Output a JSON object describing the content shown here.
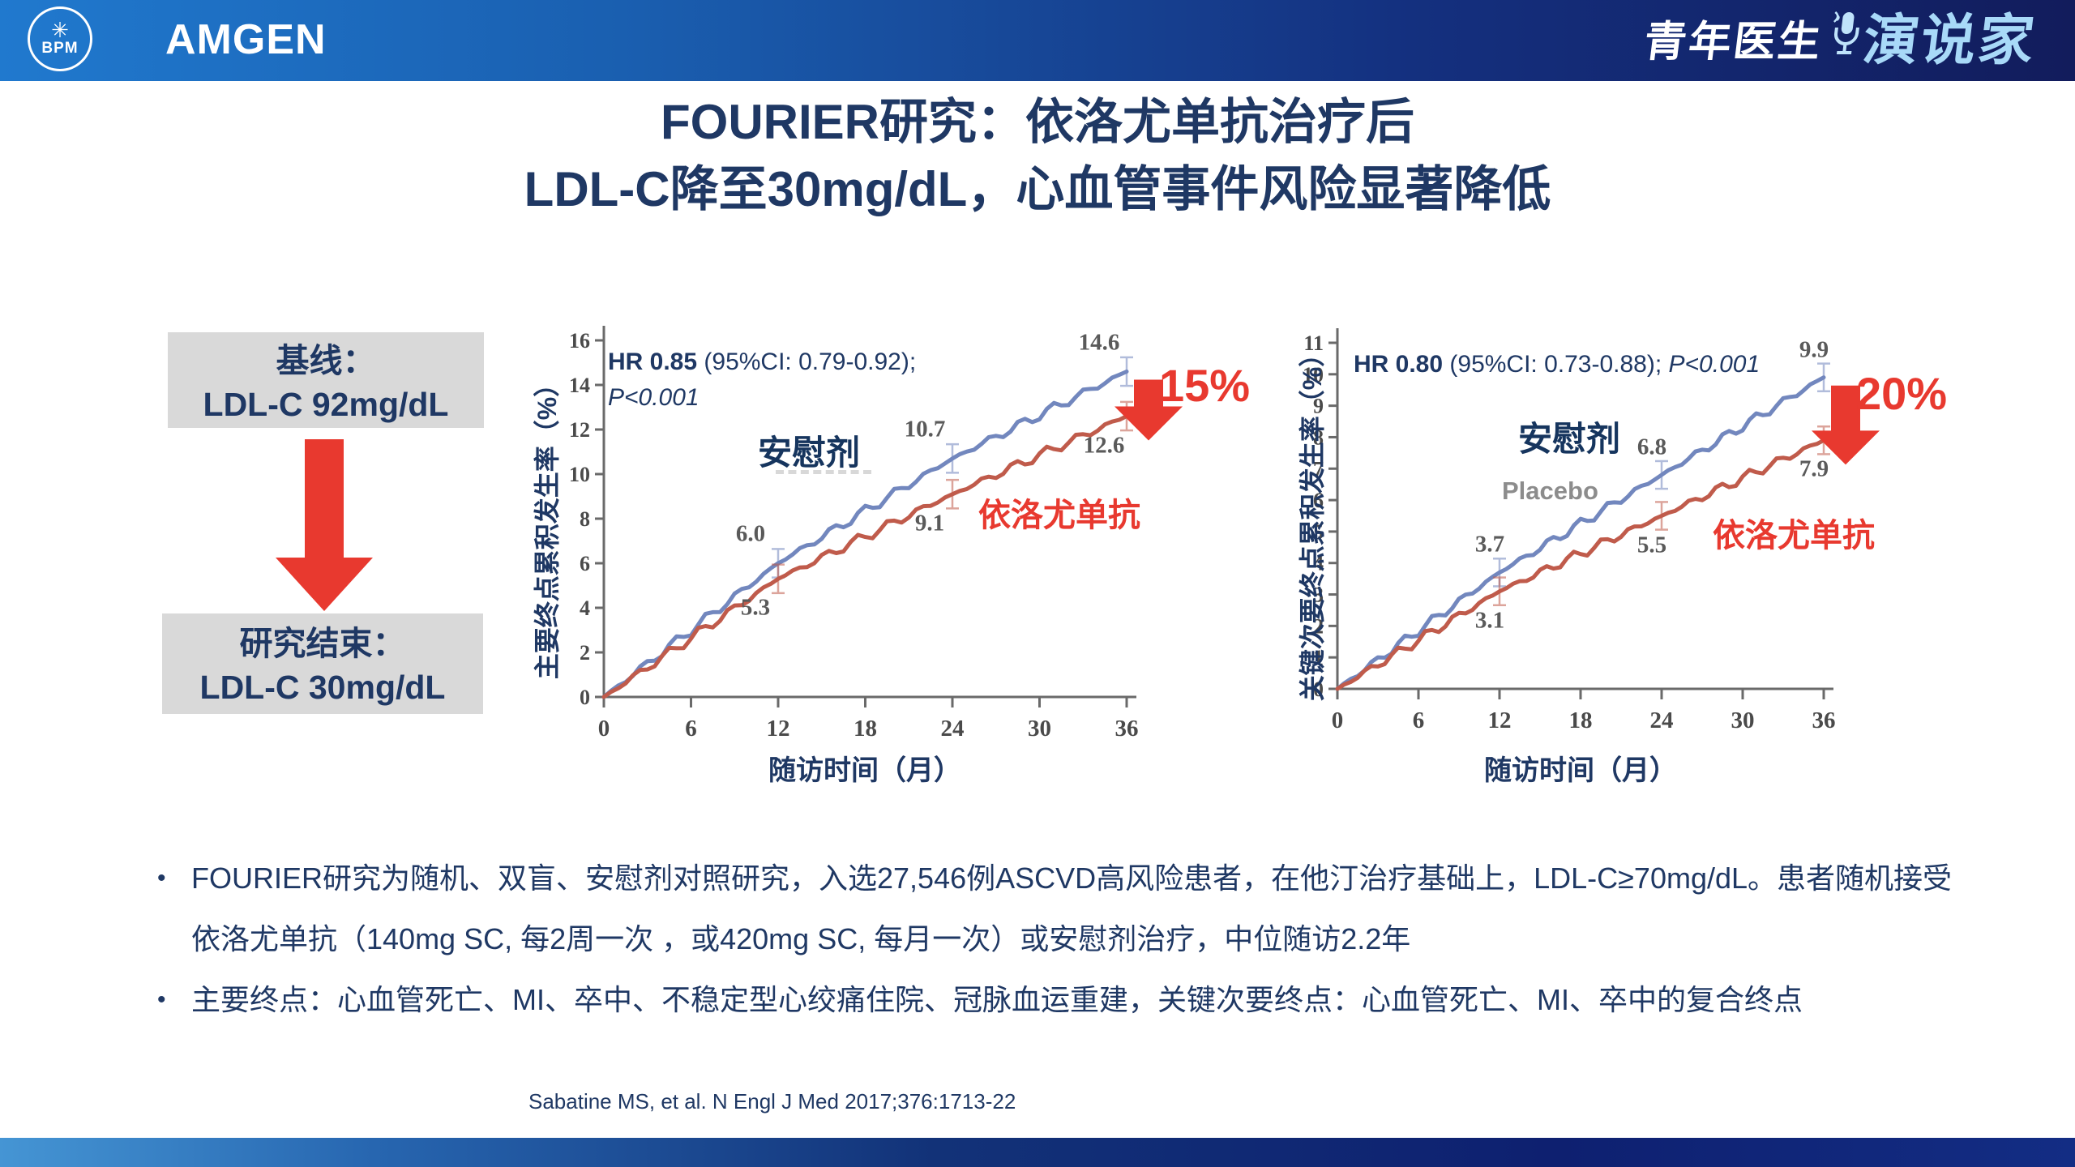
{
  "header": {
    "bpm_label": "BPM",
    "amgen_label": "AMGEN",
    "brand_cn_left": "青年医生",
    "brand_cn_right": "演说家"
  },
  "title": {
    "line1": "FOURIER研究：依洛尤单抗治疗后",
    "line2": "LDL-C降至30mg/dL，心血管事件风险显著降低"
  },
  "flow": {
    "box1_line1": "基线：",
    "box1_line2": "LDL-C 92mg/dL",
    "box2_line1": "研究结束：",
    "box2_line2": "LDL-C 30mg/dL"
  },
  "chart_data": [
    {
      "type": "line",
      "x": [
        0,
        12,
        24,
        36
      ],
      "xticks": [
        0,
        6,
        12,
        18,
        24,
        30,
        36
      ],
      "xlabel": "随访时间（月）",
      "ylabel": "主要终点累积发生率（%）",
      "ylim": [
        0,
        16
      ],
      "ytick_step": 2,
      "series": [
        {
          "name": "安慰剂",
          "color": "#7287BE",
          "values": [
            0,
            6.0,
            10.7,
            14.6
          ],
          "labels": [
            "6.0",
            "10.7",
            "14.6"
          ]
        },
        {
          "name": "依洛尤单抗",
          "color": "#C05B4B",
          "values": [
            0,
            5.3,
            9.1,
            12.6
          ],
          "labels": [
            "5.3",
            "9.1",
            "12.6"
          ]
        }
      ],
      "hr_bold": "HR 0.85",
      "hr_rest": " (95%CI: 0.79-0.92);",
      "p_value": "P<0.001",
      "placebo_label": "安慰剂",
      "drug_label": "依洛尤单抗",
      "reduction": "15%"
    },
    {
      "type": "line",
      "x": [
        0,
        12,
        24,
        36
      ],
      "xticks": [
        0,
        6,
        12,
        18,
        24,
        30,
        36
      ],
      "xlabel": "随访时间（月）",
      "ylabel": "关键次要终点累积发生率（%）",
      "ylim": [
        0,
        11
      ],
      "ytick_step": 1,
      "series": [
        {
          "name": "安慰剂",
          "color": "#7287BE",
          "values": [
            0,
            3.7,
            6.8,
            9.9
          ],
          "labels": [
            "3.7",
            "6.8",
            "9.9"
          ]
        },
        {
          "name": "依洛尤单抗",
          "color": "#C05B4B",
          "values": [
            0,
            3.1,
            5.5,
            7.9
          ],
          "labels": [
            "3.1",
            "5.5",
            "7.9"
          ]
        }
      ],
      "hr_bold": "HR 0.80",
      "hr_rest": " (95%CI: 0.73-0.88); ",
      "p_value": "P<0.001",
      "placebo_label": "安慰剂",
      "placebo_en": "Placebo",
      "drug_label": "依洛尤单抗",
      "reduction": "20%"
    }
  ],
  "bullets": [
    "FOURIER研究为随机、双盲、安慰剂对照研究，入选27,546例ASCVD高风险患者，在他汀治疗基础上，LDL-C≥70mg/dL。患者随机接受依洛尤单抗（140mg SC, 每2周一次 ，或420mg SC, 每月一次）或安慰剂治疗，中位随访2.2年",
    "主要终点：心血管死亡、MI、卒中、不稳定型心绞痛住院、冠脉血运重建，关键次要终点：心血管死亡、MI、卒中的复合终点"
  ],
  "citation": "Sabatine MS, et al. N Engl J Med 2017;376:1713-22",
  "colors": {
    "accent_red": "#E8392F",
    "navy": "#1F3864",
    "placebo_blue": "#7287BE",
    "drug_red": "#C05B4B",
    "box_gray": "#D9D9D9"
  }
}
